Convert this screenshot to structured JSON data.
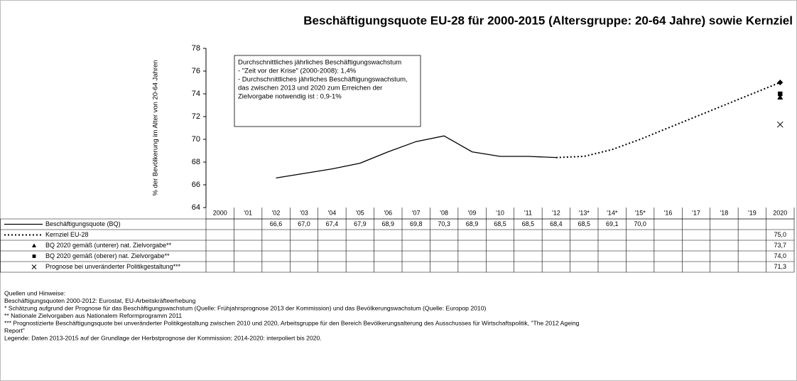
{
  "chart_data": {
    "type": "line",
    "title": "Beschäftigungsquote EU-28 für 2000-2015 (Altersgruppe: 20-64 Jahre) sowie Kernziel",
    "y_label": "% der Bevölkerung im Alter von 20-64 Jahren",
    "categories": [
      "2000",
      "'01",
      "'02",
      "'03",
      "'04",
      "'05",
      "'06",
      "'07",
      "'08",
      "'09",
      "'10",
      "'11",
      "'12",
      "'13*",
      "'14*",
      "'15*",
      "'16",
      "'17",
      "'18",
      "'19",
      "2020"
    ],
    "ylim": [
      64,
      78
    ],
    "yticks": [
      64,
      66,
      68,
      70,
      72,
      74,
      76,
      78
    ],
    "dashed_from": "'12",
    "color": "#000000",
    "series": [
      {
        "name": "Beschäftigungsquote (BQ)",
        "style": "solid",
        "values": [
          null,
          null,
          66.6,
          67.0,
          67.4,
          67.9,
          68.9,
          69.8,
          70.3,
          68.9,
          68.5,
          68.5,
          68.4,
          68.5,
          69.1,
          70.0,
          null,
          null,
          null,
          null,
          null
        ],
        "value_labels": [
          null,
          null,
          "66,6",
          "67,0",
          "67,4",
          "67,9",
          "68,9",
          "69,8",
          "70,3",
          "68,9",
          "68,5",
          "68,5",
          "68,4",
          "68,5",
          "69,1",
          "70,0",
          null,
          null,
          null,
          null,
          null
        ]
      },
      {
        "name": "Kernziel EU-28",
        "style": "dotted",
        "marker": "diamond",
        "values": [
          null,
          null,
          null,
          null,
          null,
          null,
          null,
          null,
          null,
          null,
          null,
          null,
          null,
          null,
          null,
          null,
          null,
          null,
          null,
          null,
          75.0
        ],
        "value_labels": [
          null,
          null,
          null,
          null,
          null,
          null,
          null,
          null,
          null,
          null,
          null,
          null,
          null,
          null,
          null,
          null,
          null,
          null,
          null,
          null,
          "75,0"
        ]
      },
      {
        "name": "BQ 2020 gemäß (unterer) nat. Zielvorgabe**",
        "marker": "triangle",
        "values": [
          null,
          null,
          null,
          null,
          null,
          null,
          null,
          null,
          null,
          null,
          null,
          null,
          null,
          null,
          null,
          null,
          null,
          null,
          null,
          null,
          73.7
        ],
        "value_labels": [
          null,
          null,
          null,
          null,
          null,
          null,
          null,
          null,
          null,
          null,
          null,
          null,
          null,
          null,
          null,
          null,
          null,
          null,
          null,
          null,
          "73,7"
        ]
      },
      {
        "name": "BQ 2020 gemäß (oberer) nat. Zielvorgabe**",
        "marker": "square",
        "values": [
          null,
          null,
          null,
          null,
          null,
          null,
          null,
          null,
          null,
          null,
          null,
          null,
          null,
          null,
          null,
          null,
          null,
          null,
          null,
          null,
          74.0
        ],
        "value_labels": [
          null,
          null,
          null,
          null,
          null,
          null,
          null,
          null,
          null,
          null,
          null,
          null,
          null,
          null,
          null,
          null,
          null,
          null,
          null,
          null,
          "74,0"
        ]
      },
      {
        "name": "Prognose bei unveränderter Politikgestaltung***",
        "marker": "x",
        "values": [
          null,
          null,
          null,
          null,
          null,
          null,
          null,
          null,
          null,
          null,
          null,
          null,
          null,
          null,
          null,
          null,
          null,
          null,
          null,
          null,
          71.3
        ],
        "value_labels": [
          null,
          null,
          null,
          null,
          null,
          null,
          null,
          null,
          null,
          null,
          null,
          null,
          null,
          null,
          null,
          null,
          null,
          null,
          null,
          null,
          "71,3"
        ]
      }
    ],
    "annotation": [
      "Durchschnittliches jährliches Beschäftigungswachstum",
      "- \"Zeit vor der Krise\" (2000-2008): 1,4%",
      "- Durchschnittliches jährliches Beschäftigungswachstum,",
      "das zwischen 2013 und 2020 zum Erreichen der",
      "Zielvorgabe notwendig ist : 0,9-1%"
    ],
    "notes": [
      "Quellen und Hinweise:",
      "Beschäftigungsquoten 2000-2012: Eurostat, EU-Arbeitskräfteerhebung",
      "* Schätzung aufgrund der Prognose für das Beschäftigungswachstum (Quelle: Frühjahrsprognose 2013 der Kommission) und das Bevölkerungswachstum (Quelle: Europop 2010)",
      "** Nationale Zielvorgaben aus Nationalem Reformprogramm 2011",
      "*** Prognostizierte Beschäftigungsquote bei unveränderter Politikgestaltung zwischen 2010 und 2020, Arbeitsgruppe für den Bereich Bevölkerungsalterung des Ausschusses für Wirtschaftspolitik, \"The 2012 Ageing",
      "Report\"",
      "Legende: Daten 2013-2015 auf der Grundlage der Herbstprognose der Kommission; 2014-2020: interpoliert bis 2020."
    ]
  }
}
